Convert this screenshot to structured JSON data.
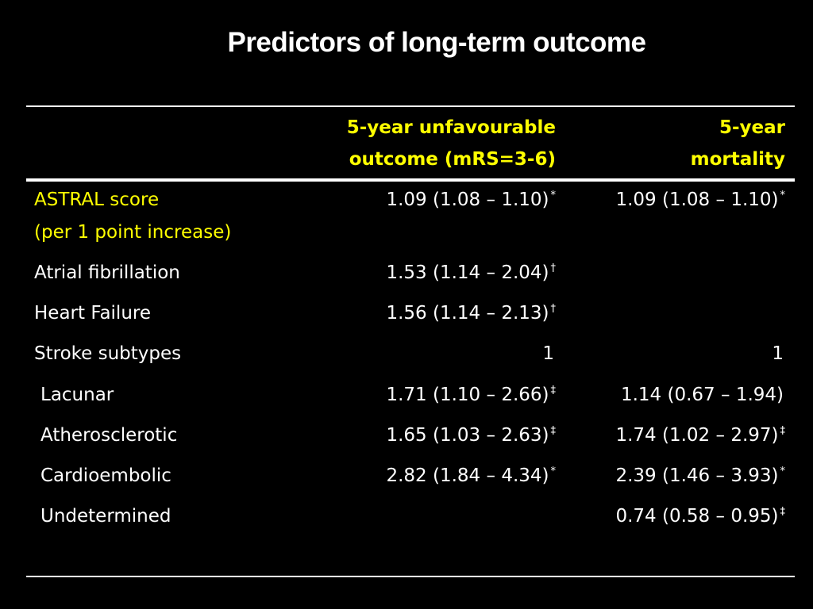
{
  "title": "Predictors of long-term outcome",
  "colors": {
    "background": "#000000",
    "text": "#ffffff",
    "accent": "#ffff00"
  },
  "table": {
    "headers": {
      "col1_line1": "5-year unfavourable",
      "col1_line2": "outcome (mRS=3-6)",
      "col2_line1": "5-year",
      "col2_line2": "mortality"
    },
    "rows": [
      {
        "label": "ASTRAL score",
        "label2": "(per 1 point increase)",
        "col1": "1.09 (1.08 – 1.10)",
        "col1_mark": "*",
        "col2": "1.09 (1.08 – 1.10)",
        "col2_mark": "*"
      },
      {
        "label": "Atrial fibrillation",
        "col1": "1.53 (1.14 – 2.04)",
        "col1_mark": "†",
        "col2": "",
        "col2_mark": ""
      },
      {
        "label": "Heart Failure",
        "col1": "1.56 (1.14 – 2.13)",
        "col1_mark": "†",
        "col2": "",
        "col2_mark": ""
      },
      {
        "label": "Stroke subtypes",
        "col1": "1",
        "col1_mark": "",
        "col2": "1",
        "col2_mark": ""
      },
      {
        "label": "Lacunar",
        "col1": "1.71 (1.10 – 2.66)",
        "col1_mark": "‡",
        "col2": "1.14 (0.67 – 1.94)",
        "col2_mark": ""
      },
      {
        "label": "Atherosclerotic",
        "col1": "1.65 (1.03 – 2.63)",
        "col1_mark": "‡",
        "col2": "1.74 (1.02 – 2.97)",
        "col2_mark": "‡"
      },
      {
        "label": "Cardioembolic",
        "col1": "2.82 (1.84 – 4.34)",
        "col1_mark": "*",
        "col2": "2.39 (1.46 – 3.93)",
        "col2_mark": "*"
      },
      {
        "label": "Undetermined",
        "col1": "",
        "col1_mark": "",
        "col2": "0.74 (0.58 – 0.95)",
        "col2_mark": "‡"
      }
    ]
  }
}
